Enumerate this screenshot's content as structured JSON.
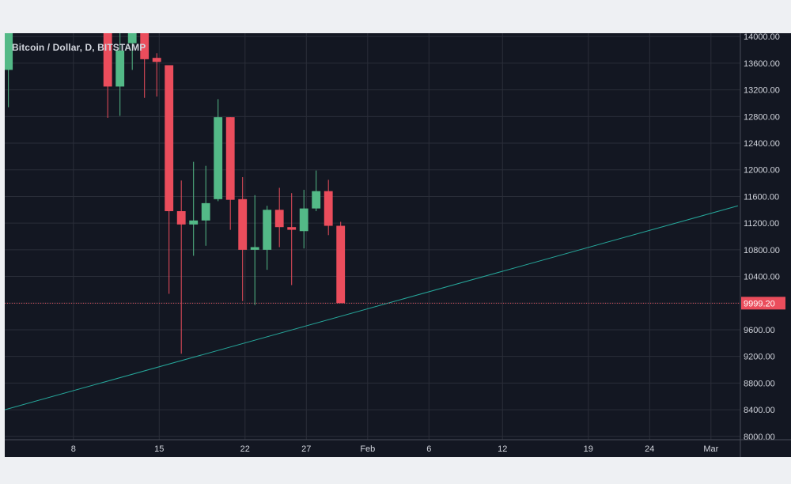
{
  "header": {
    "symbol_title": "Bitcoin / Dollar, D, BITSTAMP"
  },
  "colors": {
    "background": "#131722",
    "grid": "#2a2e39",
    "up": "#53b987",
    "down": "#eb4d5c",
    "trendline": "#26a69a",
    "price_line": "#eb4d5c",
    "axis_text": "#d1d4dc",
    "page": "#eef0f3"
  },
  "chart_data": {
    "type": "candlestick",
    "title": "Bitcoin / Dollar, D, BITSTAMP",
    "ylim": [
      7950,
      14050
    ],
    "y_ticks": [
      8000,
      8400,
      8800,
      9200,
      9600,
      10000,
      10400,
      10800,
      11200,
      11600,
      12000,
      12400,
      12800,
      13200,
      13600,
      14000
    ],
    "y_tick_labels": [
      "8000.00",
      "8400.00",
      "8800.00",
      "9200.00",
      "9600.00",
      "10000.00",
      "10400.00",
      "10800.00",
      "11200.00",
      "11600.00",
      "12000.00",
      "12400.00",
      "12800.00",
      "13200.00",
      "13600.00",
      "14000.00"
    ],
    "x_ticks": [
      {
        "label": "8",
        "day": 8
      },
      {
        "label": "15",
        "day": 15
      },
      {
        "label": "22",
        "day": 22
      },
      {
        "label": "27",
        "day": 27
      },
      {
        "label": "Feb",
        "day": 32
      },
      {
        "label": "6",
        "day": 37
      },
      {
        "label": "12",
        "day": 43
      },
      {
        "label": "19",
        "day": 50
      },
      {
        "label": "24",
        "day": 55
      },
      {
        "label": "Mar",
        "day": 60
      }
    ],
    "x_range_days": [
      2.4,
      62.4
    ],
    "candles": [
      {
        "day": 2.7,
        "open": 13500,
        "high": 14050,
        "low": 12940,
        "close": 14050
      },
      {
        "day": 10.8,
        "open": 14050,
        "high": 14050,
        "low": 12780,
        "close": 13250
      },
      {
        "day": 11.8,
        "open": 13250,
        "high": 14050,
        "low": 12810,
        "close": 13790
      },
      {
        "day": 12.8,
        "open": 13900,
        "high": 14050,
        "low": 13500,
        "close": 14050
      },
      {
        "day": 13.8,
        "open": 14050,
        "high": 14050,
        "low": 13080,
        "close": 13660
      },
      {
        "day": 14.8,
        "open": 13680,
        "high": 13750,
        "low": 13100,
        "close": 13620
      },
      {
        "day": 15.8,
        "open": 13570,
        "high": 13570,
        "low": 10140,
        "close": 11380
      },
      {
        "day": 16.8,
        "open": 11380,
        "high": 11840,
        "low": 9240,
        "close": 11180
      },
      {
        "day": 17.8,
        "open": 11180,
        "high": 12120,
        "low": 10710,
        "close": 11240
      },
      {
        "day": 18.8,
        "open": 11240,
        "high": 12060,
        "low": 10860,
        "close": 11500
      },
      {
        "day": 19.8,
        "open": 11560,
        "high": 13060,
        "low": 11530,
        "close": 12790
      },
      {
        "day": 20.8,
        "open": 12790,
        "high": 12790,
        "low": 11100,
        "close": 11550
      },
      {
        "day": 21.8,
        "open": 11560,
        "high": 11890,
        "low": 10030,
        "close": 10800
      },
      {
        "day": 22.8,
        "open": 10800,
        "high": 11620,
        "low": 9970,
        "close": 10840
      },
      {
        "day": 23.8,
        "open": 10800,
        "high": 11460,
        "low": 10500,
        "close": 11400
      },
      {
        "day": 24.8,
        "open": 11400,
        "high": 11730,
        "low": 10840,
        "close": 11140
      },
      {
        "day": 25.8,
        "open": 11140,
        "high": 11650,
        "low": 10270,
        "close": 11100
      },
      {
        "day": 26.8,
        "open": 11080,
        "high": 11700,
        "low": 10820,
        "close": 11420
      },
      {
        "day": 27.8,
        "open": 11420,
        "high": 11990,
        "low": 11380,
        "close": 11680
      },
      {
        "day": 28.8,
        "open": 11680,
        "high": 11850,
        "low": 11020,
        "close": 11160
      },
      {
        "day": 29.8,
        "open": 11160,
        "high": 11220,
        "low": 9999.2,
        "close": 9999.2
      }
    ],
    "trendline": {
      "start": {
        "day": 2.4,
        "price": 8400
      },
      "end": {
        "day": 62.2,
        "price": 11460
      }
    },
    "last_price": 9999.2,
    "last_price_label": "9999.20",
    "grid": true
  }
}
